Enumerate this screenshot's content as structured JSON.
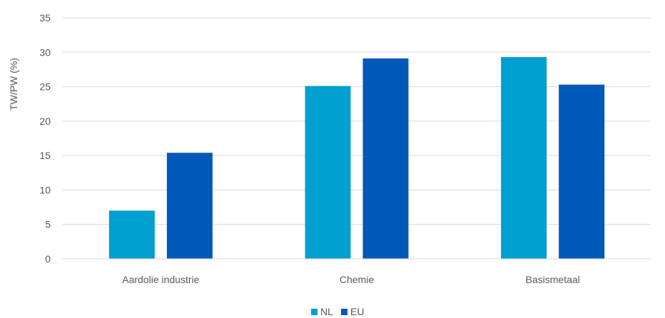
{
  "chart_data": {
    "type": "bar",
    "categories": [
      "Aardolie industrie",
      "Chemie",
      "Basismetaal"
    ],
    "series": [
      {
        "name": "NL",
        "values": [
          7.0,
          25.1,
          29.3
        ],
        "color": "#00A0D0"
      },
      {
        "name": "EU",
        "values": [
          15.4,
          29.1,
          25.3
        ],
        "color": "#0058B8"
      }
    ],
    "ylabel": "TW/PW (%)",
    "ylim": [
      0,
      35
    ],
    "yticks": [
      0,
      5,
      10,
      15,
      20,
      25,
      30,
      35
    ],
    "grid": true,
    "legend": "bottom"
  }
}
